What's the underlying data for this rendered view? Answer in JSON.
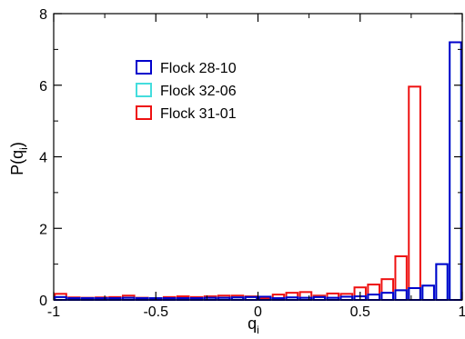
{
  "chart_data": {
    "type": "bar",
    "title": "",
    "xlabel_main": "q",
    "xlabel_sub": "i",
    "ylabel_main": "P(q",
    "ylabel_sub": "i",
    "ylabel_close": ")",
    "xlim": [
      -1,
      1
    ],
    "ylim": [
      0,
      8
    ],
    "xticks": [
      {
        "value": -1,
        "label": "-1"
      },
      {
        "value": -0.5,
        "label": "-0.5"
      },
      {
        "value": 0,
        "label": "0"
      },
      {
        "value": 0.5,
        "label": "0.5"
      },
      {
        "value": 1,
        "label": "1"
      }
    ],
    "yticks": [
      {
        "value": 0,
        "label": "0"
      },
      {
        "value": 2,
        "label": "2"
      },
      {
        "value": 4,
        "label": "4"
      },
      {
        "value": 6,
        "label": "6"
      },
      {
        "value": 8,
        "label": "8"
      }
    ],
    "bin_edges": [
      -1.0,
      -0.933,
      -0.867,
      -0.8,
      -0.733,
      -0.667,
      -0.6,
      -0.533,
      -0.467,
      -0.4,
      -0.333,
      -0.267,
      -0.2,
      -0.133,
      -0.067,
      0.0,
      0.067,
      0.133,
      0.2,
      0.267,
      0.333,
      0.4,
      0.467,
      0.533,
      0.6,
      0.667,
      0.733,
      0.8,
      0.867,
      0.933,
      1.0
    ],
    "legend_position": "upper-left",
    "grid": false,
    "series": [
      {
        "name": "Flock 28-10",
        "color": "#0000cc",
        "values": [
          0.08,
          0.05,
          0.05,
          0.05,
          0.05,
          0.06,
          0.05,
          0.05,
          0.05,
          0.05,
          0.05,
          0.06,
          0.06,
          0.07,
          0.08,
          0.09,
          0.05,
          0.07,
          0.06,
          0.08,
          0.06,
          0.09,
          0.1,
          0.15,
          0.2,
          0.27,
          0.33,
          0.4,
          1.0,
          7.2
        ]
      },
      {
        "name": "Flock 32-06",
        "color": "#44dddd",
        "values": [
          0.08,
          0.05,
          0.05,
          0.05,
          0.05,
          0.06,
          0.05,
          0.05,
          0.05,
          0.05,
          0.05,
          0.06,
          0.06,
          0.07,
          0.08,
          0.09,
          0.05,
          0.07,
          0.06,
          0.08,
          0.06,
          0.09,
          0.1,
          0.15,
          0.2,
          0.27,
          0.33,
          0.4,
          1.0,
          7.2
        ]
      },
      {
        "name": "Flock 31-01",
        "color": "#ee1111",
        "values": [
          0.17,
          0.07,
          0.06,
          0.07,
          0.08,
          0.12,
          0.06,
          0.05,
          0.08,
          0.1,
          0.08,
          0.1,
          0.12,
          0.12,
          0.1,
          0.05,
          0.15,
          0.2,
          0.22,
          0.12,
          0.18,
          0.17,
          0.35,
          0.43,
          0.58,
          1.22,
          5.96,
          0.0,
          0.0,
          0.0
        ]
      }
    ]
  }
}
